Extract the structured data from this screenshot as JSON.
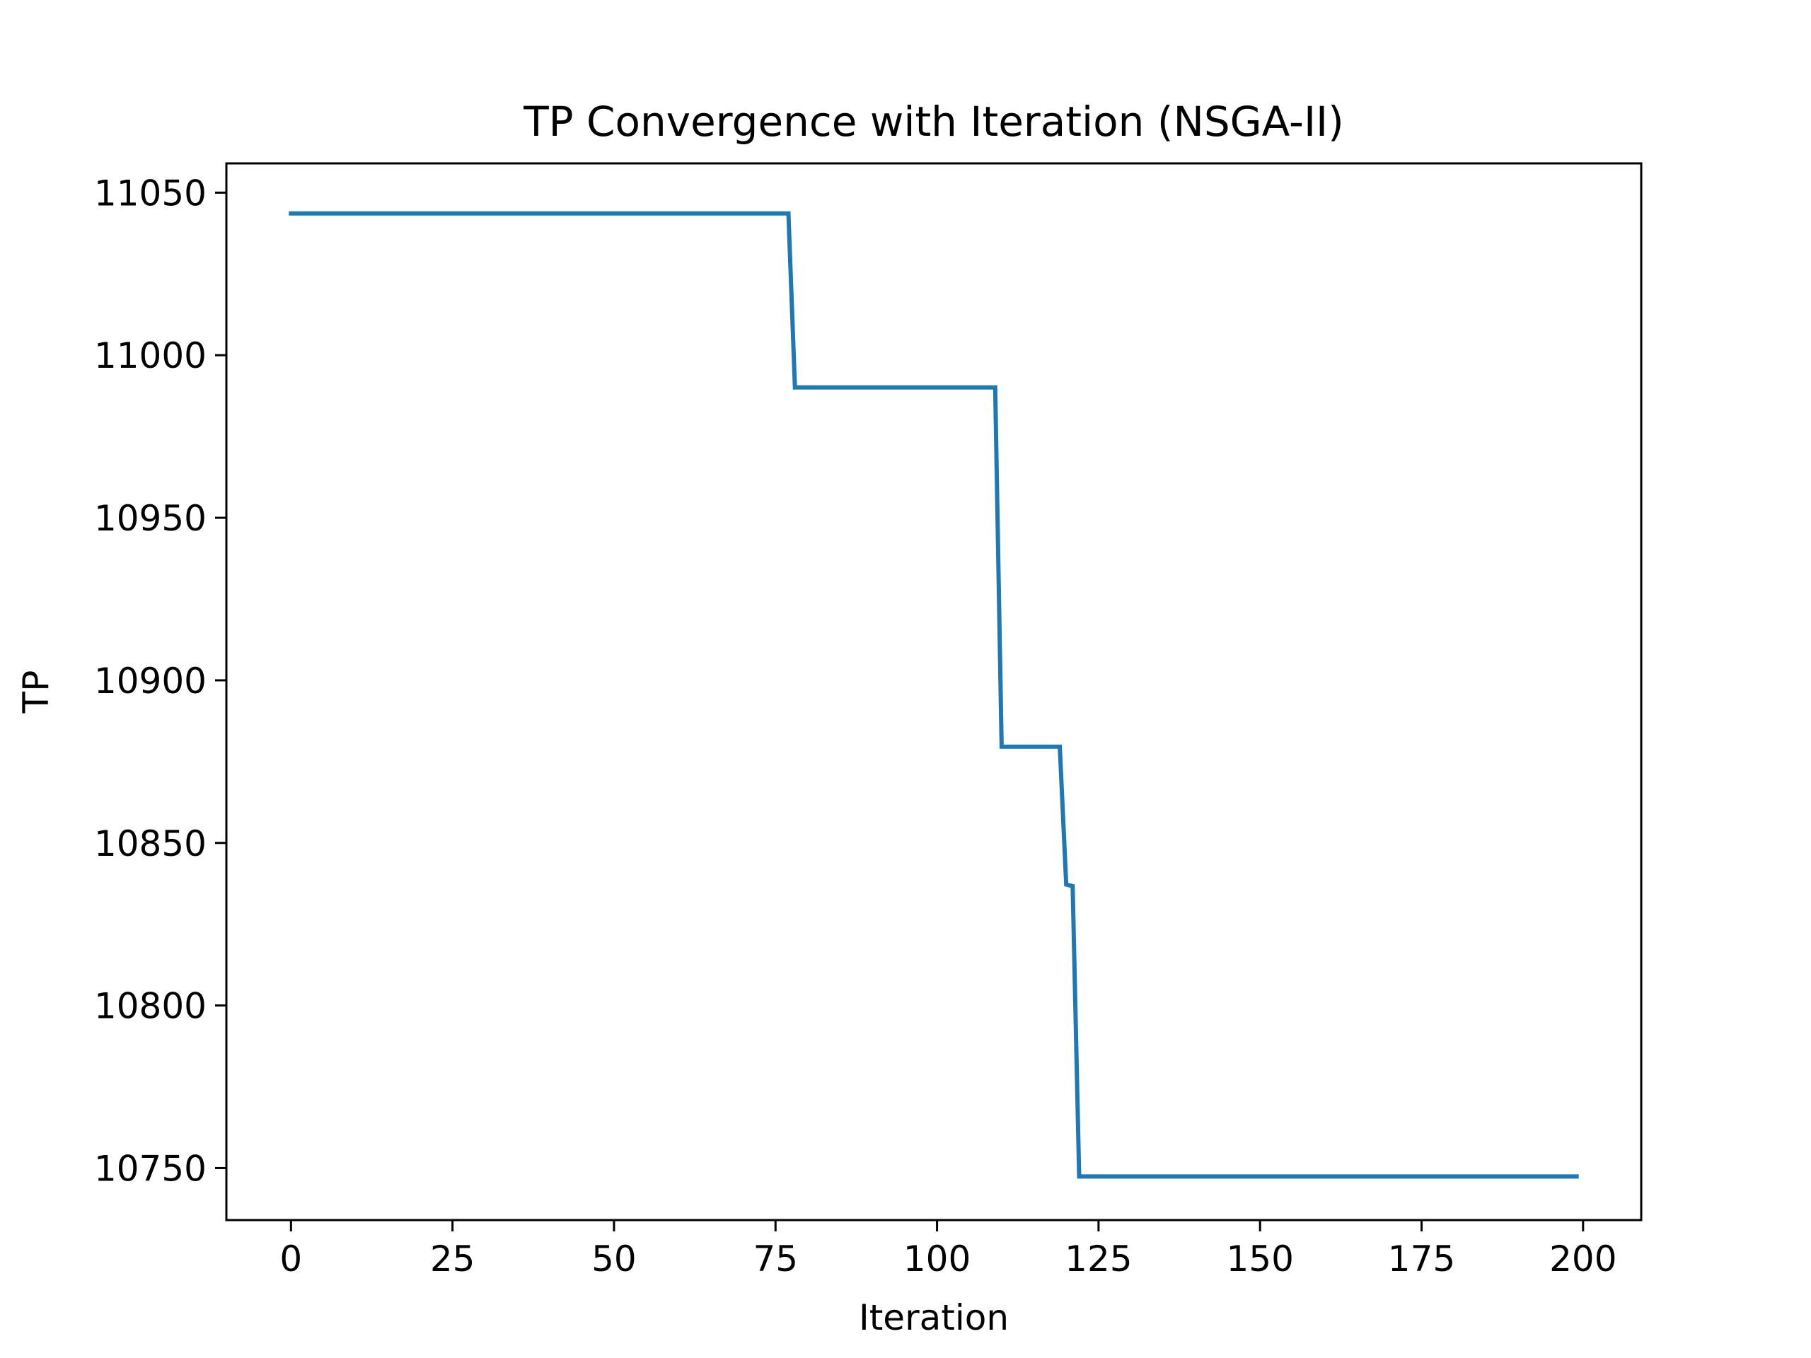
{
  "chart_data": {
    "type": "line",
    "title": "TP Convergence with Iteration (NSGA-II)",
    "xlabel": "Iteration",
    "ylabel": "TP",
    "xlim": [
      -10,
      209
    ],
    "ylim": [
      10734,
      11059
    ],
    "xticks": [
      0,
      25,
      50,
      75,
      100,
      125,
      150,
      175,
      200
    ],
    "yticks": [
      10750,
      10800,
      10850,
      10900,
      10950,
      11000,
      11050
    ],
    "grid": false,
    "legend": "none",
    "series": [
      {
        "color": "#1f77b4",
        "steps": [
          {
            "from": 0,
            "to": 77,
            "value": 11043.6
          },
          {
            "from": 78,
            "to": 109,
            "value": 10990.1
          },
          {
            "from": 110,
            "to": 119,
            "value": 10879.6
          },
          {
            "from": 120,
            "to": 120,
            "value": 10837.2
          },
          {
            "from": 121,
            "to": 121,
            "value": 10836.7
          },
          {
            "from": 122,
            "to": 199,
            "value": 10747.4
          }
        ]
      }
    ]
  }
}
